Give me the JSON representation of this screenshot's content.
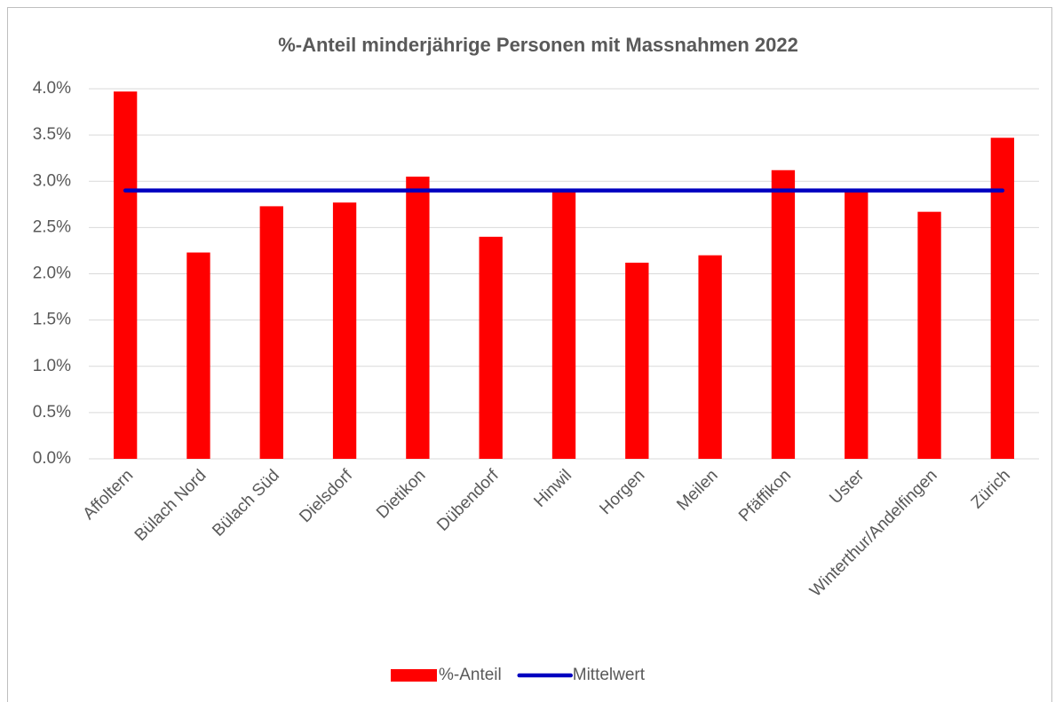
{
  "chart_data": {
    "type": "bar",
    "title": "%-Anteil minderjährige Personen mit Massnahmen 2022",
    "categories": [
      "Affoltern",
      "Bülach Nord",
      "Bülach Süd",
      "Dielsdorf",
      "Dietikon",
      "Dübendorf",
      "Hinwil",
      "Horgen",
      "Meilen",
      "Pfäffikon",
      "Uster",
      "Winterthur/Andelfingen",
      "Zürich"
    ],
    "series": [
      {
        "name": "%-Anteil",
        "type": "bar",
        "color": "#ff0000",
        "values": [
          3.97,
          2.23,
          2.73,
          2.77,
          3.05,
          2.4,
          2.92,
          2.12,
          2.2,
          3.12,
          2.92,
          2.67,
          3.47
        ]
      },
      {
        "name": "Mittelwert",
        "type": "line",
        "color": "#0000c0",
        "values": [
          2.9,
          2.9,
          2.9,
          2.9,
          2.9,
          2.9,
          2.9,
          2.9,
          2.9,
          2.9,
          2.9,
          2.9,
          2.9
        ]
      }
    ],
    "ylim": [
      0,
      4
    ],
    "yticks": [
      {
        "value": 0,
        "label": "0.0%"
      },
      {
        "value": 0.5,
        "label": "0.5%"
      },
      {
        "value": 1,
        "label": "1.0%"
      },
      {
        "value": 1.5,
        "label": "1.5%"
      },
      {
        "value": 2,
        "label": "2.0%"
      },
      {
        "value": 2.5,
        "label": "2.5%"
      },
      {
        "value": 3,
        "label": "3.0%"
      },
      {
        "value": 3.5,
        "label": "3.5%"
      },
      {
        "value": 4,
        "label": "4.0%"
      }
    ],
    "grid": true,
    "legend": "bottom"
  }
}
